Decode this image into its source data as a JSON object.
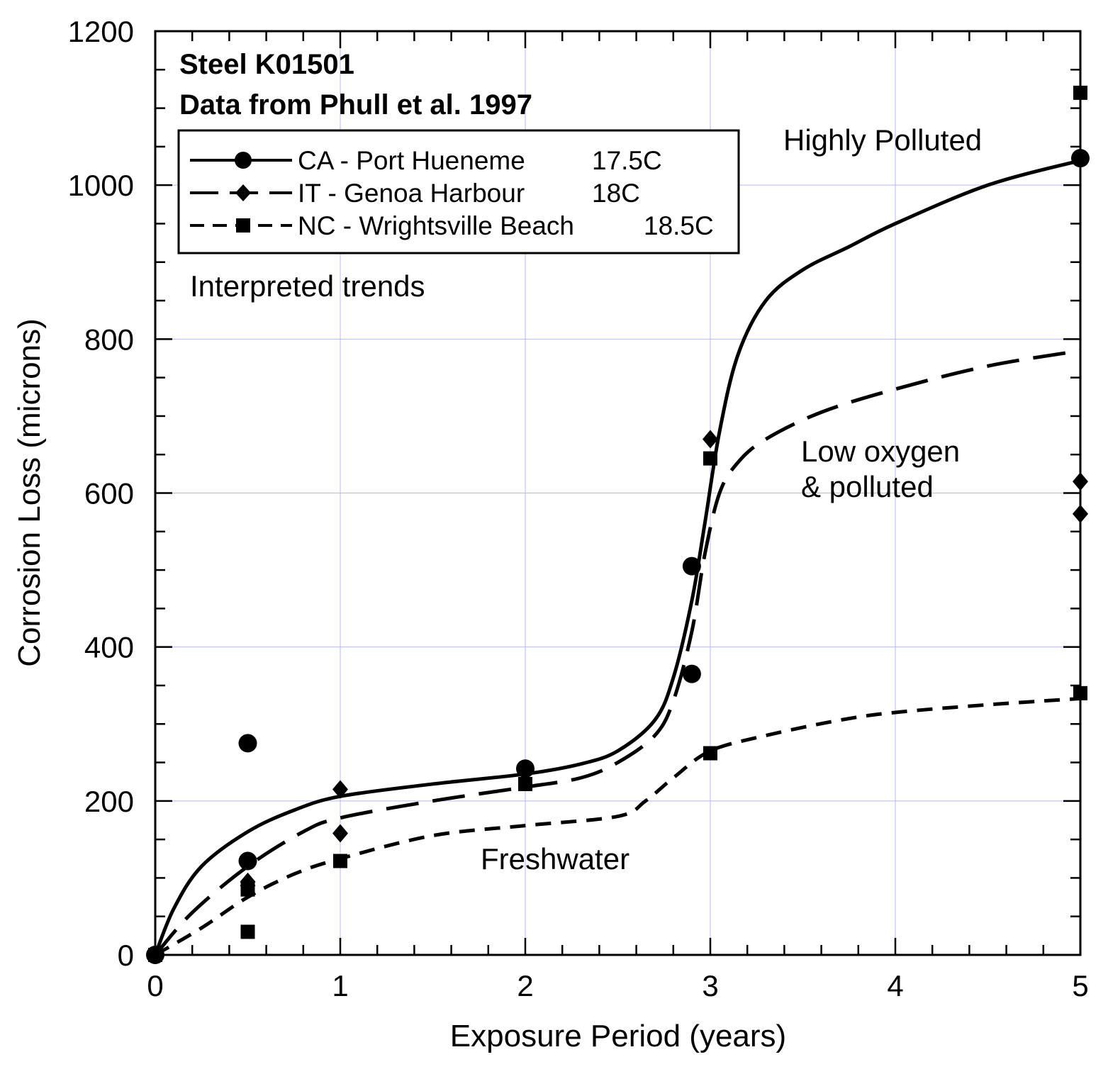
{
  "chart_data": {
    "type": "scatter",
    "title_lines": [
      "Steel K01501",
      "Data from Phull et al. 1997"
    ],
    "xlabel": "Exposure Period (years)",
    "ylabel": "Corrosion Loss (microns)",
    "xlim": [
      0,
      5
    ],
    "ylim": [
      0,
      1200
    ],
    "x_ticks": [
      0,
      1,
      2,
      3,
      4,
      5
    ],
    "y_ticks": [
      0,
      200,
      400,
      600,
      800,
      1000,
      1200
    ],
    "grid": true,
    "legend_position": "top-left",
    "series": [
      {
        "name": "CA - Port Hueneme",
        "temperature": "17.5C",
        "marker": "circle",
        "line_style": "solid",
        "points": [
          [
            0,
            0
          ],
          [
            0.5,
            275
          ],
          [
            0.5,
            122
          ],
          [
            2,
            242
          ],
          [
            2.9,
            505
          ],
          [
            2.9,
            365
          ],
          [
            5,
            1035
          ]
        ]
      },
      {
        "name": "IT - Genoa Harbour",
        "temperature": "18C",
        "marker": "diamond",
        "line_style": "long-dash",
        "points": [
          [
            0,
            0
          ],
          [
            0.5,
            95
          ],
          [
            0.5,
            90
          ],
          [
            1,
            215
          ],
          [
            1,
            158
          ],
          [
            3,
            670
          ],
          [
            5,
            615
          ],
          [
            5,
            573
          ]
        ]
      },
      {
        "name": "NC - Wrightsville Beach",
        "temperature": "18.5C",
        "marker": "square",
        "line_style": "short-dash",
        "points": [
          [
            0,
            0
          ],
          [
            0.5,
            85
          ],
          [
            0.5,
            30
          ],
          [
            1,
            122
          ],
          [
            2,
            222
          ],
          [
            3,
            645
          ],
          [
            3,
            262
          ],
          [
            5,
            1120
          ],
          [
            5,
            340
          ]
        ]
      }
    ],
    "trend_curves": [
      {
        "name": "Highly Polluted",
        "line_style": "solid",
        "points": [
          [
            0,
            0
          ],
          [
            0.1,
            60
          ],
          [
            0.25,
            115
          ],
          [
            0.5,
            160
          ],
          [
            0.75,
            188
          ],
          [
            1,
            206
          ],
          [
            1.5,
            222
          ],
          [
            2,
            235
          ],
          [
            2.3,
            248
          ],
          [
            2.5,
            265
          ],
          [
            2.7,
            305
          ],
          [
            2.8,
            360
          ],
          [
            2.9,
            460
          ],
          [
            2.97,
            560
          ],
          [
            3.05,
            680
          ],
          [
            3.15,
            780
          ],
          [
            3.3,
            850
          ],
          [
            3.5,
            890
          ],
          [
            3.75,
            920
          ],
          [
            4,
            950
          ],
          [
            4.5,
            1000
          ],
          [
            5,
            1032
          ]
        ]
      },
      {
        "name": "Low oxygen & polluted",
        "line_style": "long-dash",
        "points": [
          [
            0,
            0
          ],
          [
            0.2,
            55
          ],
          [
            0.5,
            115
          ],
          [
            0.8,
            160
          ],
          [
            1,
            178
          ],
          [
            1.5,
            200
          ],
          [
            2,
            218
          ],
          [
            2.3,
            230
          ],
          [
            2.5,
            250
          ],
          [
            2.7,
            285
          ],
          [
            2.8,
            330
          ],
          [
            2.9,
            420
          ],
          [
            2.97,
            520
          ],
          [
            3.05,
            600
          ],
          [
            3.15,
            640
          ],
          [
            3.3,
            670
          ],
          [
            3.6,
            705
          ],
          [
            4,
            735
          ],
          [
            4.5,
            765
          ],
          [
            5,
            785
          ]
        ]
      },
      {
        "name": "Freshwater",
        "line_style": "short-dash",
        "points": [
          [
            0,
            0
          ],
          [
            0.25,
            35
          ],
          [
            0.5,
            75
          ],
          [
            0.75,
            105
          ],
          [
            1,
            125
          ],
          [
            1.5,
            155
          ],
          [
            2,
            168
          ],
          [
            2.5,
            180
          ],
          [
            2.65,
            200
          ],
          [
            2.8,
            230
          ],
          [
            3,
            265
          ],
          [
            3.3,
            285
          ],
          [
            3.7,
            305
          ],
          [
            4,
            315
          ],
          [
            4.5,
            325
          ],
          [
            5,
            333
          ]
        ]
      }
    ],
    "annotations": [
      "Highly Polluted",
      "Low oxygen",
      "& polluted",
      "Freshwater",
      "Interpreted trends"
    ]
  }
}
